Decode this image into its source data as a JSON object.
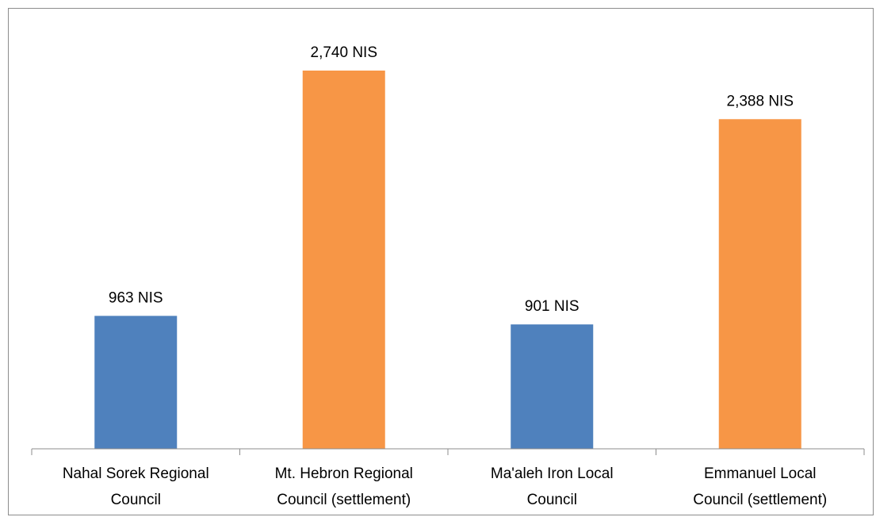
{
  "chart_data": {
    "type": "bar",
    "categories": [
      [
        "Nahal Sorek Regional",
        "Council"
      ],
      [
        "Mt. Hebron Regional",
        "Council (settlement)"
      ],
      [
        "Ma'aleh Iron Local",
        "Council"
      ],
      [
        "Emmanuel Local",
        "Council (settlement)"
      ]
    ],
    "values": [
      963,
      2740,
      901,
      2388
    ],
    "data_labels": [
      "963 NIS",
      "2,740 NIS",
      "901 NIS",
      "2,388 NIS"
    ],
    "colors": [
      "#4f81bd",
      "#f79646",
      "#4f81bd",
      "#f79646"
    ],
    "title": "",
    "xlabel": "",
    "ylabel": "",
    "ylim": [
      0,
      3000
    ],
    "grid": false,
    "legend": "none"
  }
}
